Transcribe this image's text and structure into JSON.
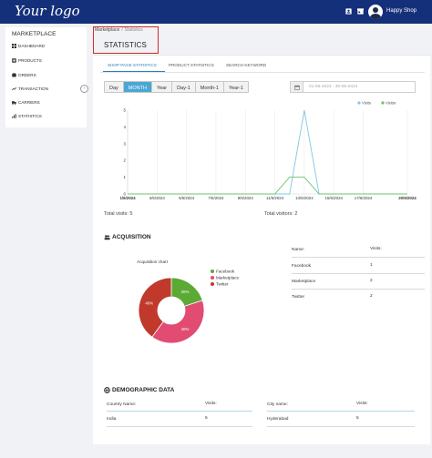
{
  "header": {
    "logo": "Your logo",
    "icons": [
      "profile-icon",
      "store-icon"
    ],
    "user_name": "Happy Shop"
  },
  "sidebar": {
    "title": "MARKETPLACE",
    "items": [
      {
        "label": "DASHBOARD",
        "icon": "dashboard-icon"
      },
      {
        "label": "PRODUCTS",
        "icon": "box-icon"
      },
      {
        "label": "ORDERS",
        "icon": "orders-icon"
      },
      {
        "label": "TRANSACTION",
        "icon": "transaction-icon"
      },
      {
        "label": "CARRIERS",
        "icon": "truck-icon"
      },
      {
        "label": "STATISTICS",
        "icon": "chart-icon"
      }
    ],
    "collapse_glyph": "‹"
  },
  "breadcrumb": {
    "parent": "Marketplace",
    "separator": "/",
    "current": "Statistics"
  },
  "page_title": "STATISTICS",
  "sub_tabs": [
    "SHOP PAGE STATISTICS",
    "PRODUCT STATISTICS",
    "SEARCH KEYWORD"
  ],
  "active_sub_tab": 0,
  "periods": [
    "Day",
    "MONTH",
    "Year",
    "Day-1",
    "Month-1",
    "Year-1"
  ],
  "active_period": 1,
  "date_range_placeholder": "01-06-2024 - 30-06-2024",
  "colors": {
    "visits": "#7ec8e3",
    "visitor": "#6cc36c",
    "accent": "#4aa7d4",
    "header": "#15307a",
    "highlight": "#d42a2a"
  },
  "chart_data": [
    {
      "type": "line",
      "categories": [
        "1/6/2024",
        "2/6/2024",
        "3/6/2024",
        "4/6/2024",
        "5/6/2024",
        "6/6/2024",
        "7/6/2024",
        "8/6/2024",
        "9/6/2024",
        "10/6/2024",
        "11/6/2024",
        "12/6/2024",
        "13/6/2024",
        "14/6/2024",
        "15/6/2024",
        "16/6/2024",
        "17/6/2024",
        "18/6/2024",
        "19/6/2024",
        "20/6/2024"
      ],
      "tick_labels": [
        "1/6/2024",
        "3/6/2024",
        "5/6/2024",
        "7/6/2024",
        "9/6/2024",
        "11/6/2024",
        "13/6/2024",
        "15/6/2024",
        "17/6/2024",
        "20/6/2024"
      ],
      "series": [
        {
          "name": "Visits",
          "values": [
            0,
            0,
            0,
            0,
            0,
            0,
            0,
            0,
            0,
            0,
            0,
            0,
            5,
            0,
            0,
            0,
            0,
            0,
            0,
            0
          ]
        },
        {
          "name": "Visitor",
          "values": [
            0,
            0,
            0,
            0,
            0,
            0,
            0,
            0,
            0,
            0,
            0,
            1,
            1,
            0,
            0,
            0,
            0,
            0,
            0,
            0
          ]
        }
      ],
      "yticks": [
        0,
        1,
        2,
        3,
        4,
        5
      ],
      "ylim": [
        0,
        5
      ],
      "legend": "top-right",
      "grid": "vertical"
    },
    {
      "type": "pie",
      "title": "Acquisition chart",
      "labels": [
        "Facebook",
        "Marketplace",
        "Twitter"
      ],
      "values": [
        20,
        40,
        40
      ],
      "value_labels": [
        "20%",
        "40%",
        "40%"
      ],
      "colors": [
        "#5aaa34",
        "#e24b72",
        "#c0392b"
      ],
      "legend": "right"
    }
  ],
  "totals": {
    "visits": "Total visits: 5",
    "visitors": "Total visitors: 2"
  },
  "acquisition": {
    "title": "ACQUISITION",
    "table": {
      "headers": [
        "Name:",
        "Visits:"
      ],
      "rows": [
        [
          "Facebook",
          "1"
        ],
        [
          "Marketplace",
          "2"
        ],
        [
          "Twitter",
          "2"
        ]
      ]
    }
  },
  "demographic": {
    "title": "DEMOGRAPHIC DATA",
    "country_table": {
      "headers": [
        "Country Name:",
        "Visits:"
      ],
      "rows": [
        [
          "India",
          "5"
        ]
      ]
    },
    "city_table": {
      "headers": [
        "City name:",
        "Visits:"
      ],
      "rows": [
        [
          "Hyderabad",
          "5"
        ]
      ]
    }
  }
}
